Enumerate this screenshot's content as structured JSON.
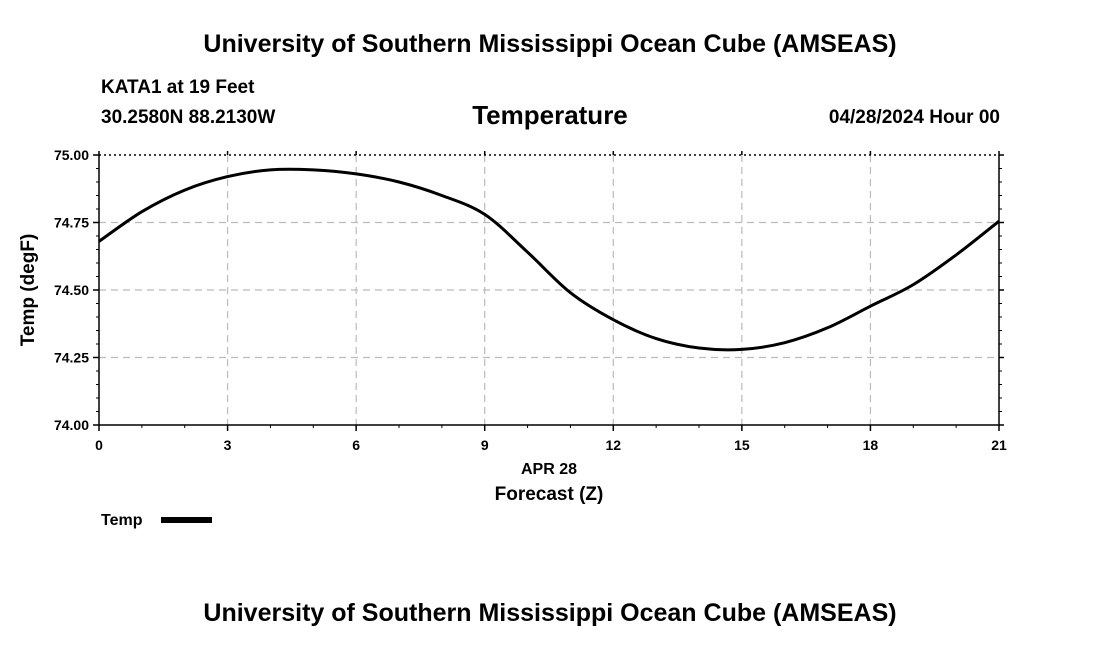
{
  "header": {
    "title": "University of Southern Mississippi Ocean Cube (AMSEAS)",
    "station": "KATA1 at 19 Feet",
    "coordinates": "30.2580N  88.2130W",
    "datetime": "04/28/2024 Hour 00"
  },
  "footer": {
    "title": "University of Southern Mississippi Ocean Cube (AMSEAS)"
  },
  "colors": {
    "line": "#000000",
    "grid": "#bbbbbb",
    "background": "#ffffff"
  },
  "chart_data": {
    "type": "line",
    "title": "Temperature",
    "xlabel": "Forecast (Z)",
    "xlabel_date": "APR 28",
    "ylabel": "Temp (degF)",
    "xlim": [
      0,
      21
    ],
    "ylim": [
      74.0,
      75.0
    ],
    "x_ticks": [
      0,
      3,
      6,
      9,
      12,
      15,
      18,
      21
    ],
    "y_ticks": [
      74.0,
      74.25,
      74.5,
      74.75,
      75.0
    ],
    "y_tick_labels": [
      "74.00",
      "74.25",
      "74.50",
      "74.75",
      "75.00"
    ],
    "grid": true,
    "legend": "bottom-left",
    "series": [
      {
        "name": "Temp",
        "x": [
          0,
          1,
          2,
          3,
          4,
          5,
          6,
          7,
          8,
          9,
          10,
          11,
          12,
          13,
          14,
          15,
          16,
          17,
          18,
          19,
          20,
          21
        ],
        "values": [
          74.68,
          74.79,
          74.87,
          74.92,
          74.945,
          74.945,
          74.93,
          74.9,
          74.85,
          74.78,
          74.64,
          74.49,
          74.39,
          74.32,
          74.285,
          74.28,
          74.305,
          74.36,
          74.44,
          74.52,
          74.63,
          74.755
        ]
      }
    ]
  }
}
